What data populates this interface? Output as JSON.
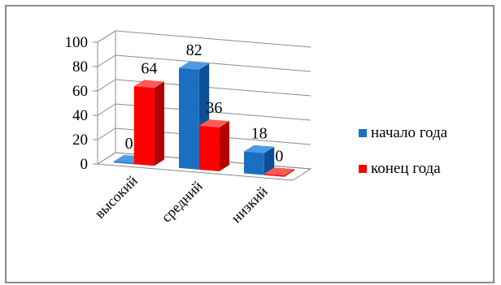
{
  "chart_data": {
    "type": "bar",
    "style": "3d-clustered-column",
    "categories": [
      "высокий",
      "средний",
      "низкий"
    ],
    "series": [
      {
        "name": "начало года",
        "values": [
          0,
          82,
          18
        ],
        "color": "#1a6fc1",
        "side": "#0d4f93",
        "top": "#4d99e3"
      },
      {
        "name": "конец года",
        "values": [
          64,
          36,
          0
        ],
        "color": "#ff0000",
        "side": "#b30000",
        "top": "#ff5a5a"
      }
    ],
    "ylim": [
      0,
      100
    ],
    "yticks": [
      "0",
      "20",
      "40",
      "60",
      "80",
      "100"
    ],
    "grid": true,
    "legend": "right",
    "data_labels": true
  }
}
